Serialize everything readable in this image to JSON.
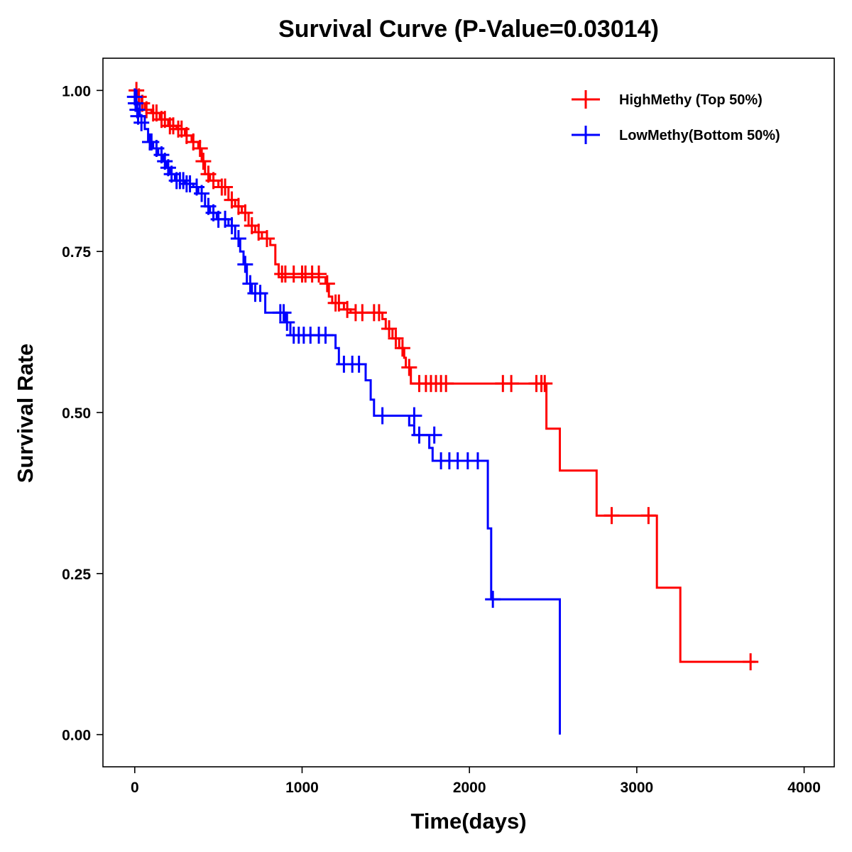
{
  "chart_data": {
    "type": "line",
    "subtype": "kaplan-meier",
    "title": "Survival Curve (P-Value=0.03014)",
    "xlabel": "Time(days)",
    "ylabel": "Survival Rate",
    "xlim": [
      -190,
      4180
    ],
    "ylim": [
      -0.05,
      1.05
    ],
    "xticks": [
      0,
      1000,
      2000,
      3000,
      4000
    ],
    "xtick_labels": [
      "0",
      "1000",
      "2000",
      "3000",
      "4000"
    ],
    "yticks": [
      0,
      0.25,
      0.5,
      0.75,
      1.0
    ],
    "ytick_labels": [
      "0.00",
      "0.25",
      "0.50",
      "0.75",
      "1.00"
    ],
    "grid": false,
    "legend_position": "top-right",
    "series": [
      {
        "name": "HighMethy (Top 50%)",
        "color": "#ff0000",
        "steps": [
          [
            0,
            1.0
          ],
          [
            20,
            0.99
          ],
          [
            40,
            0.98
          ],
          [
            60,
            0.97
          ],
          [
            100,
            0.965
          ],
          [
            150,
            0.955
          ],
          [
            200,
            0.945
          ],
          [
            250,
            0.94
          ],
          [
            300,
            0.93
          ],
          [
            340,
            0.92
          ],
          [
            380,
            0.91
          ],
          [
            400,
            0.89
          ],
          [
            420,
            0.87
          ],
          [
            450,
            0.86
          ],
          [
            500,
            0.85
          ],
          [
            560,
            0.83
          ],
          [
            600,
            0.82
          ],
          [
            640,
            0.81
          ],
          [
            680,
            0.79
          ],
          [
            720,
            0.78
          ],
          [
            760,
            0.77
          ],
          [
            810,
            0.76
          ],
          [
            840,
            0.73
          ],
          [
            860,
            0.71
          ],
          [
            1140,
            0.7
          ],
          [
            1160,
            0.68
          ],
          [
            1180,
            0.67
          ],
          [
            1250,
            0.66
          ],
          [
            1290,
            0.655
          ],
          [
            1480,
            0.645
          ],
          [
            1500,
            0.63
          ],
          [
            1540,
            0.615
          ],
          [
            1580,
            0.6
          ],
          [
            1610,
            0.585
          ],
          [
            1620,
            0.57
          ],
          [
            1650,
            0.545
          ],
          [
            2460,
            0.475
          ],
          [
            2540,
            0.41
          ],
          [
            2760,
            0.34
          ],
          [
            3120,
            0.228
          ],
          [
            3260,
            0.113
          ],
          [
            3710,
            0.113
          ]
        ],
        "censors": [
          [
            10,
            1.0
          ],
          [
            25,
            0.99
          ],
          [
            45,
            0.98
          ],
          [
            70,
            0.97
          ],
          [
            110,
            0.965
          ],
          [
            130,
            0.965
          ],
          [
            160,
            0.955
          ],
          [
            180,
            0.955
          ],
          [
            210,
            0.945
          ],
          [
            230,
            0.945
          ],
          [
            260,
            0.94
          ],
          [
            280,
            0.94
          ],
          [
            310,
            0.93
          ],
          [
            350,
            0.92
          ],
          [
            390,
            0.91
          ],
          [
            410,
            0.89
          ],
          [
            440,
            0.87
          ],
          [
            470,
            0.86
          ],
          [
            520,
            0.85
          ],
          [
            540,
            0.85
          ],
          [
            580,
            0.83
          ],
          [
            620,
            0.82
          ],
          [
            660,
            0.81
          ],
          [
            700,
            0.79
          ],
          [
            740,
            0.78
          ],
          [
            790,
            0.77
          ],
          [
            880,
            0.715
          ],
          [
            900,
            0.715
          ],
          [
            950,
            0.715
          ],
          [
            1000,
            0.715
          ],
          [
            1020,
            0.715
          ],
          [
            1060,
            0.715
          ],
          [
            1100,
            0.715
          ],
          [
            1150,
            0.7
          ],
          [
            1200,
            0.67
          ],
          [
            1220,
            0.67
          ],
          [
            1270,
            0.66
          ],
          [
            1320,
            0.655
          ],
          [
            1360,
            0.655
          ],
          [
            1430,
            0.655
          ],
          [
            1460,
            0.655
          ],
          [
            1520,
            0.63
          ],
          [
            1560,
            0.615
          ],
          [
            1600,
            0.6
          ],
          [
            1640,
            0.57
          ],
          [
            1700,
            0.545
          ],
          [
            1740,
            0.545
          ],
          [
            1770,
            0.545
          ],
          [
            1800,
            0.545
          ],
          [
            1830,
            0.545
          ],
          [
            1860,
            0.545
          ],
          [
            2200,
            0.545
          ],
          [
            2250,
            0.545
          ],
          [
            2400,
            0.545
          ],
          [
            2430,
            0.545
          ],
          [
            2450,
            0.545
          ],
          [
            2850,
            0.34
          ],
          [
            3070,
            0.34
          ],
          [
            3680,
            0.113
          ]
        ]
      },
      {
        "name": "LowMethy(Bottom 50%)",
        "color": "#0000ff",
        "steps": [
          [
            0,
            1.0
          ],
          [
            10,
            0.98
          ],
          [
            30,
            0.96
          ],
          [
            60,
            0.94
          ],
          [
            80,
            0.92
          ],
          [
            110,
            0.91
          ],
          [
            140,
            0.9
          ],
          [
            170,
            0.89
          ],
          [
            190,
            0.88
          ],
          [
            210,
            0.87
          ],
          [
            240,
            0.86
          ],
          [
            300,
            0.855
          ],
          [
            350,
            0.85
          ],
          [
            380,
            0.84
          ],
          [
            420,
            0.82
          ],
          [
            450,
            0.81
          ],
          [
            490,
            0.8
          ],
          [
            560,
            0.79
          ],
          [
            600,
            0.77
          ],
          [
            630,
            0.75
          ],
          [
            650,
            0.73
          ],
          [
            670,
            0.7
          ],
          [
            700,
            0.685
          ],
          [
            780,
            0.655
          ],
          [
            900,
            0.64
          ],
          [
            930,
            0.62
          ],
          [
            1200,
            0.6
          ],
          [
            1220,
            0.575
          ],
          [
            1380,
            0.55
          ],
          [
            1410,
            0.52
          ],
          [
            1430,
            0.495
          ],
          [
            1640,
            0.48
          ],
          [
            1670,
            0.465
          ],
          [
            1760,
            0.445
          ],
          [
            1780,
            0.425
          ],
          [
            2110,
            0.32
          ],
          [
            2130,
            0.21
          ],
          [
            2540,
            0.21
          ],
          [
            2540,
            0.0
          ]
        ],
        "censors": [
          [
            0,
            0.99
          ],
          [
            5,
            0.98
          ],
          [
            15,
            0.97
          ],
          [
            20,
            0.96
          ],
          [
            40,
            0.95
          ],
          [
            90,
            0.92
          ],
          [
            100,
            0.92
          ],
          [
            130,
            0.91
          ],
          [
            160,
            0.9
          ],
          [
            180,
            0.89
          ],
          [
            200,
            0.88
          ],
          [
            220,
            0.87
          ],
          [
            250,
            0.86
          ],
          [
            270,
            0.86
          ],
          [
            290,
            0.86
          ],
          [
            310,
            0.855
          ],
          [
            330,
            0.855
          ],
          [
            370,
            0.85
          ],
          [
            400,
            0.84
          ],
          [
            440,
            0.82
          ],
          [
            470,
            0.81
          ],
          [
            500,
            0.8
          ],
          [
            540,
            0.8
          ],
          [
            580,
            0.79
          ],
          [
            620,
            0.77
          ],
          [
            660,
            0.73
          ],
          [
            690,
            0.7
          ],
          [
            720,
            0.685
          ],
          [
            750,
            0.685
          ],
          [
            870,
            0.655
          ],
          [
            890,
            0.655
          ],
          [
            910,
            0.64
          ],
          [
            950,
            0.62
          ],
          [
            980,
            0.62
          ],
          [
            1010,
            0.62
          ],
          [
            1050,
            0.62
          ],
          [
            1100,
            0.62
          ],
          [
            1140,
            0.62
          ],
          [
            1250,
            0.575
          ],
          [
            1300,
            0.575
          ],
          [
            1340,
            0.575
          ],
          [
            1480,
            0.495
          ],
          [
            1670,
            0.495
          ],
          [
            1700,
            0.465
          ],
          [
            1790,
            0.465
          ],
          [
            1830,
            0.425
          ],
          [
            1880,
            0.425
          ],
          [
            1930,
            0.425
          ],
          [
            1990,
            0.425
          ],
          [
            2050,
            0.425
          ],
          [
            2140,
            0.21
          ]
        ]
      }
    ]
  }
}
